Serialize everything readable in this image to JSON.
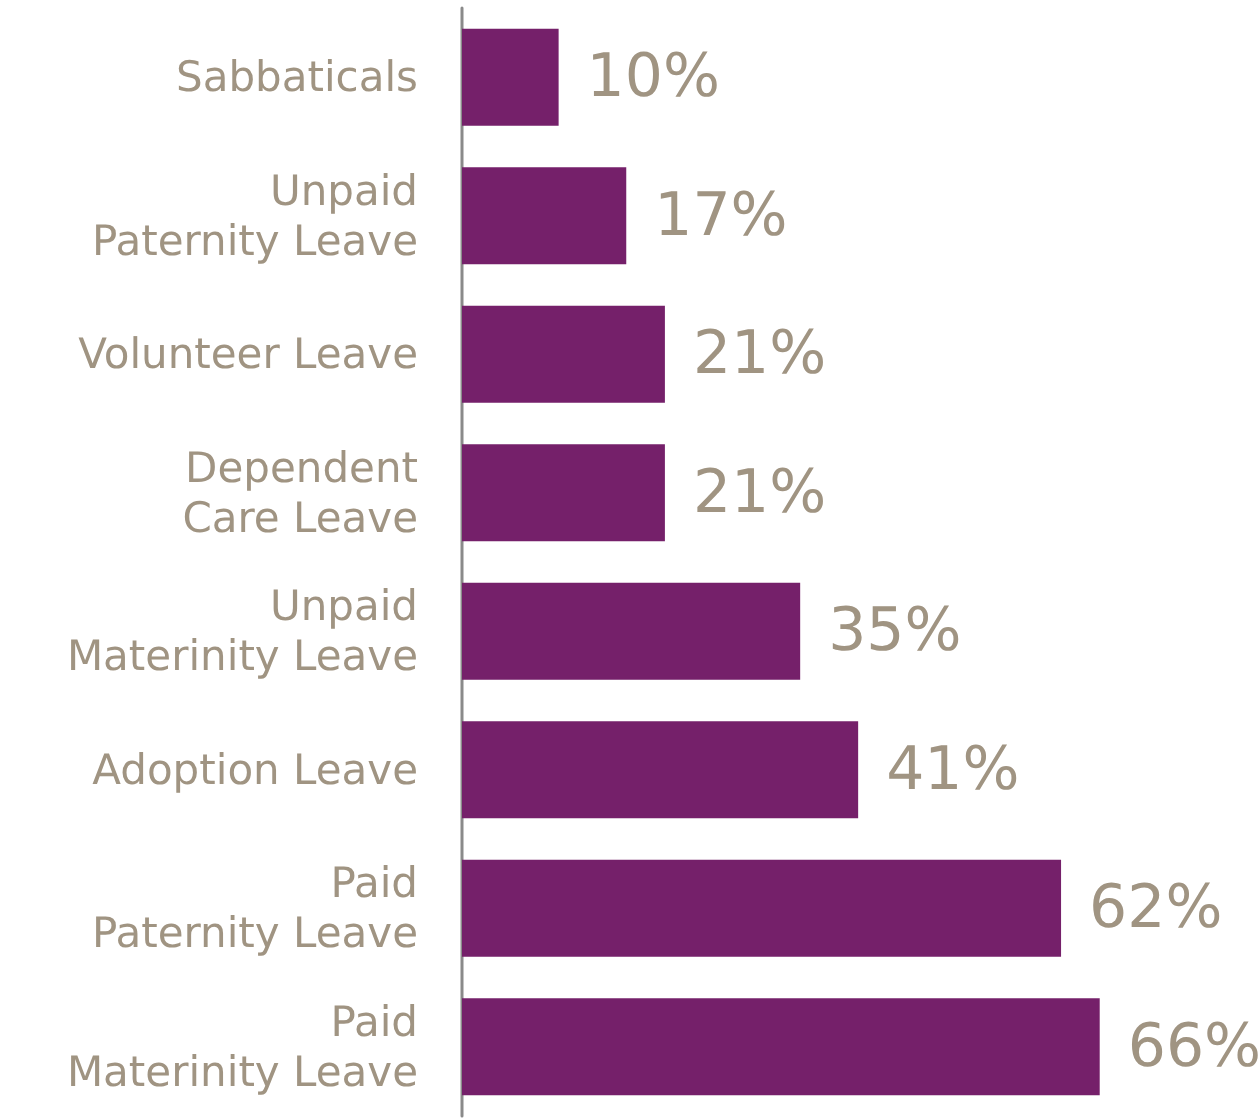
{
  "chart_data": {
    "type": "bar",
    "orientation": "horizontal",
    "categories": [
      "Sabbaticals",
      "Unpaid\nPaternity Leave",
      "Volunteer Leave",
      "Dependent\nCare Leave",
      "Unpaid\nMaterinity Leave",
      "Adoption Leave",
      "Paid\nPaternity Leave",
      "Paid\nMaterinity Leave"
    ],
    "values": [
      10,
      17,
      21,
      21,
      35,
      41,
      62,
      66
    ],
    "value_labels": [
      "10%",
      "17%",
      "21%",
      "21%",
      "35%",
      "41%",
      "62%",
      "66%"
    ],
    "color": "#75206a",
    "grid": false,
    "tick_labels": "y"
  }
}
